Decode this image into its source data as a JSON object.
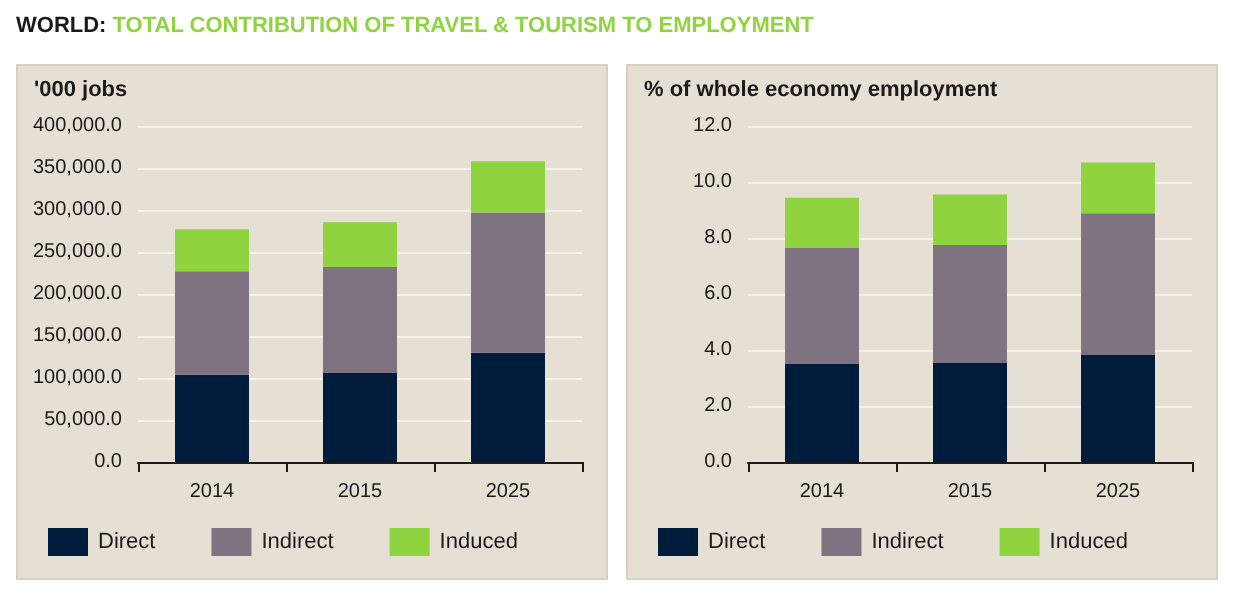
{
  "chart_data": [
    {
      "type": "bar",
      "title": "WORLD: TOTAL CONTRIBUTION OF TRAVEL & TOURISM TO EMPLOYMENT",
      "ylabel": "'000 jobs",
      "categories": [
        "2014",
        "2015",
        "2025"
      ],
      "stacked": true,
      "grid": "y",
      "legend": "bottom",
      "series": [
        {
          "name": "Direct",
          "color": "#001c3d",
          "values": [
            104000,
            106000,
            130000
          ]
        },
        {
          "name": "Indirect",
          "color": "#7f7281",
          "values": [
            123000,
            126000,
            167000
          ]
        },
        {
          "name": "Induced",
          "color": "#8fd43f",
          "values": [
            50000,
            53500,
            61000
          ]
        }
      ],
      "ylim": [
        0,
        400000
      ],
      "yticks": [
        {
          "value": 0,
          "label": "0.0"
        },
        {
          "value": 50000,
          "label": "50,000.0"
        },
        {
          "value": 100000,
          "label": "100,000.0"
        },
        {
          "value": 150000,
          "label": "150,000.0"
        },
        {
          "value": 200000,
          "label": "200,000.0"
        },
        {
          "value": 250000,
          "label": "250,000.0"
        },
        {
          "value": 300000,
          "label": "300,000.0"
        },
        {
          "value": 350000,
          "label": "350,000.0"
        },
        {
          "value": 400000,
          "label": "400,000.0"
        }
      ]
    },
    {
      "type": "bar",
      "ylabel": "% of whole economy employment",
      "categories": [
        "2014",
        "2015",
        "2025"
      ],
      "stacked": true,
      "grid": "y",
      "legend": "bottom",
      "series": [
        {
          "name": "Direct",
          "color": "#001c3d",
          "values": [
            3.5,
            3.55,
            3.84
          ]
        },
        {
          "name": "Indirect",
          "color": "#7f7281",
          "values": [
            4.14,
            4.2,
            5.04
          ]
        },
        {
          "name": "Induced",
          "color": "#8fd43f",
          "values": [
            1.8,
            1.8,
            1.82
          ]
        }
      ],
      "ylim": [
        0,
        12
      ],
      "yticks": [
        {
          "value": 0,
          "label": "0.0"
        },
        {
          "value": 2,
          "label": "2.0"
        },
        {
          "value": 4,
          "label": "4.0"
        },
        {
          "value": 6,
          "label": "6.0"
        },
        {
          "value": 8,
          "label": "8.0"
        },
        {
          "value": 10,
          "label": "10.0"
        },
        {
          "value": 12,
          "label": "12.0"
        }
      ]
    }
  ]
}
